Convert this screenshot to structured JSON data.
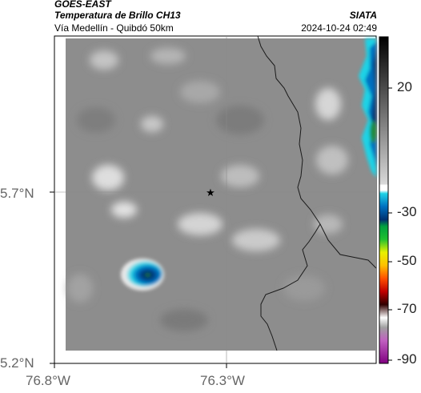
{
  "header": {
    "satellite": "GOES-EAST",
    "product": "Temperatura de Brillo CH13",
    "region": "Vía Medellín - Quibdó 50km",
    "brand": "SIATA",
    "timestamp": "2024-10-24 02:49"
  },
  "axes": {
    "y_labels": [
      "5.7°N",
      "5.2°N"
    ],
    "x_labels": [
      "76.8°W",
      "76.3°W"
    ]
  },
  "colorbar": {
    "labels": [
      "20",
      "-30",
      "-50",
      "-70",
      "-90"
    ]
  },
  "marker": {
    "icon": "star-icon"
  }
}
